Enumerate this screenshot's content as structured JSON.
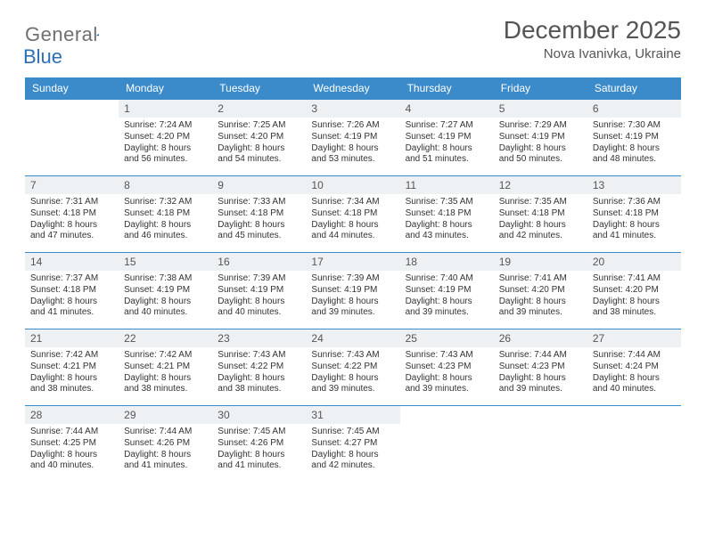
{
  "colors": {
    "header_bg": "#3b8bca",
    "header_text": "#ffffff",
    "daynum_bg": "#eef1f3",
    "text": "#333333",
    "title_text": "#555555",
    "row_border": "#3b8bca",
    "logo_gray": "#6f6f6f",
    "logo_blue": "#2b6fb5"
  },
  "logo": {
    "word1": "General",
    "word2": "Blue"
  },
  "title": "December 2025",
  "subtitle": "Nova Ivanivka, Ukraine",
  "daynames": [
    "Sunday",
    "Monday",
    "Tuesday",
    "Wednesday",
    "Thursday",
    "Friday",
    "Saturday"
  ],
  "weeks": [
    [
      null,
      {
        "n": "1",
        "sr": "7:24 AM",
        "ss": "4:20 PM",
        "dl": "8 hours and 56 minutes."
      },
      {
        "n": "2",
        "sr": "7:25 AM",
        "ss": "4:20 PM",
        "dl": "8 hours and 54 minutes."
      },
      {
        "n": "3",
        "sr": "7:26 AM",
        "ss": "4:19 PM",
        "dl": "8 hours and 53 minutes."
      },
      {
        "n": "4",
        "sr": "7:27 AM",
        "ss": "4:19 PM",
        "dl": "8 hours and 51 minutes."
      },
      {
        "n": "5",
        "sr": "7:29 AM",
        "ss": "4:19 PM",
        "dl": "8 hours and 50 minutes."
      },
      {
        "n": "6",
        "sr": "7:30 AM",
        "ss": "4:19 PM",
        "dl": "8 hours and 48 minutes."
      }
    ],
    [
      {
        "n": "7",
        "sr": "7:31 AM",
        "ss": "4:18 PM",
        "dl": "8 hours and 47 minutes."
      },
      {
        "n": "8",
        "sr": "7:32 AM",
        "ss": "4:18 PM",
        "dl": "8 hours and 46 minutes."
      },
      {
        "n": "9",
        "sr": "7:33 AM",
        "ss": "4:18 PM",
        "dl": "8 hours and 45 minutes."
      },
      {
        "n": "10",
        "sr": "7:34 AM",
        "ss": "4:18 PM",
        "dl": "8 hours and 44 minutes."
      },
      {
        "n": "11",
        "sr": "7:35 AM",
        "ss": "4:18 PM",
        "dl": "8 hours and 43 minutes."
      },
      {
        "n": "12",
        "sr": "7:35 AM",
        "ss": "4:18 PM",
        "dl": "8 hours and 42 minutes."
      },
      {
        "n": "13",
        "sr": "7:36 AM",
        "ss": "4:18 PM",
        "dl": "8 hours and 41 minutes."
      }
    ],
    [
      {
        "n": "14",
        "sr": "7:37 AM",
        "ss": "4:18 PM",
        "dl": "8 hours and 41 minutes."
      },
      {
        "n": "15",
        "sr": "7:38 AM",
        "ss": "4:19 PM",
        "dl": "8 hours and 40 minutes."
      },
      {
        "n": "16",
        "sr": "7:39 AM",
        "ss": "4:19 PM",
        "dl": "8 hours and 40 minutes."
      },
      {
        "n": "17",
        "sr": "7:39 AM",
        "ss": "4:19 PM",
        "dl": "8 hours and 39 minutes."
      },
      {
        "n": "18",
        "sr": "7:40 AM",
        "ss": "4:19 PM",
        "dl": "8 hours and 39 minutes."
      },
      {
        "n": "19",
        "sr": "7:41 AM",
        "ss": "4:20 PM",
        "dl": "8 hours and 39 minutes."
      },
      {
        "n": "20",
        "sr": "7:41 AM",
        "ss": "4:20 PM",
        "dl": "8 hours and 38 minutes."
      }
    ],
    [
      {
        "n": "21",
        "sr": "7:42 AM",
        "ss": "4:21 PM",
        "dl": "8 hours and 38 minutes."
      },
      {
        "n": "22",
        "sr": "7:42 AM",
        "ss": "4:21 PM",
        "dl": "8 hours and 38 minutes."
      },
      {
        "n": "23",
        "sr": "7:43 AM",
        "ss": "4:22 PM",
        "dl": "8 hours and 38 minutes."
      },
      {
        "n": "24",
        "sr": "7:43 AM",
        "ss": "4:22 PM",
        "dl": "8 hours and 39 minutes."
      },
      {
        "n": "25",
        "sr": "7:43 AM",
        "ss": "4:23 PM",
        "dl": "8 hours and 39 minutes."
      },
      {
        "n": "26",
        "sr": "7:44 AM",
        "ss": "4:23 PM",
        "dl": "8 hours and 39 minutes."
      },
      {
        "n": "27",
        "sr": "7:44 AM",
        "ss": "4:24 PM",
        "dl": "8 hours and 40 minutes."
      }
    ],
    [
      {
        "n": "28",
        "sr": "7:44 AM",
        "ss": "4:25 PM",
        "dl": "8 hours and 40 minutes."
      },
      {
        "n": "29",
        "sr": "7:44 AM",
        "ss": "4:26 PM",
        "dl": "8 hours and 41 minutes."
      },
      {
        "n": "30",
        "sr": "7:45 AM",
        "ss": "4:26 PM",
        "dl": "8 hours and 41 minutes."
      },
      {
        "n": "31",
        "sr": "7:45 AM",
        "ss": "4:27 PM",
        "dl": "8 hours and 42 minutes."
      },
      null,
      null,
      null
    ]
  ],
  "labels": {
    "sunrise": "Sunrise:",
    "sunset": "Sunset:",
    "daylight": "Daylight:"
  }
}
